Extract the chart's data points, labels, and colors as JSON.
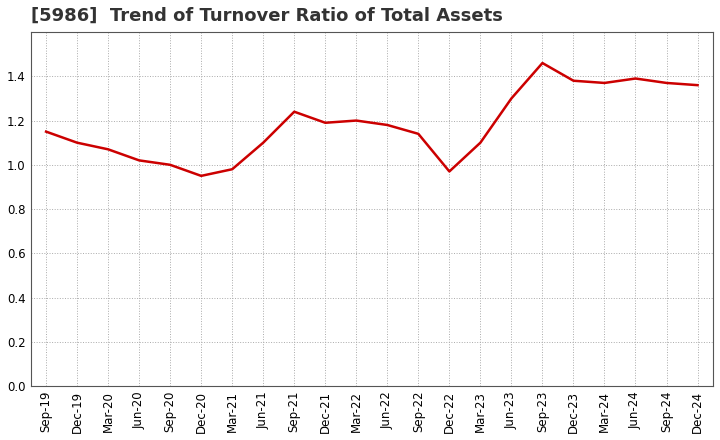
{
  "title": "[5986]  Trend of Turnover Ratio of Total Assets",
  "x_labels": [
    "Sep-19",
    "Dec-19",
    "Mar-20",
    "Jun-20",
    "Sep-20",
    "Dec-20",
    "Mar-21",
    "Jun-21",
    "Sep-21",
    "Dec-21",
    "Mar-22",
    "Jun-22",
    "Sep-22",
    "Dec-22",
    "Mar-23",
    "Jun-23",
    "Sep-23",
    "Dec-23",
    "Mar-24",
    "Jun-24",
    "Sep-24",
    "Dec-24"
  ],
  "values": [
    1.15,
    1.1,
    1.07,
    1.02,
    1.0,
    0.95,
    0.98,
    1.1,
    1.24,
    1.19,
    1.2,
    1.18,
    1.14,
    0.97,
    1.1,
    1.3,
    1.46,
    1.38,
    1.37,
    1.39,
    1.37,
    1.36
  ],
  "line_color": "#cc0000",
  "background_color": "#ffffff",
  "plot_bg_color": "#ffffff",
  "ylim": [
    0.0,
    1.6
  ],
  "yticks": [
    0.0,
    0.2,
    0.4,
    0.6,
    0.8,
    1.0,
    1.2,
    1.4
  ],
  "title_fontsize": 13,
  "tick_fontsize": 8.5,
  "grid_color": "#aaaaaa",
  "grid_style": ":",
  "line_width": 1.8,
  "spine_color": "#555555"
}
